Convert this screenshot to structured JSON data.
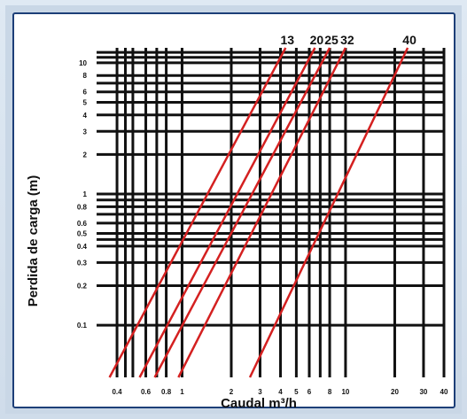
{
  "chart_data": {
    "type": "line",
    "x_scale": "log",
    "y_scale": "log",
    "xlabel": "Caudal m³/h",
    "ylabel": "Perdida de carga (m)",
    "xlim": [
      0.3,
      40
    ],
    "ylim": [
      0.04,
      13
    ],
    "x_ticks": [
      0.4,
      0.6,
      0.8,
      1,
      2,
      3,
      4,
      5,
      6,
      8,
      10,
      20,
      30,
      40
    ],
    "x_tick_labels": [
      "0.4",
      "0.6",
      "0.8",
      "1",
      "2",
      "3",
      "4",
      "5",
      "6",
      "8",
      "10",
      "20",
      "30",
      "40"
    ],
    "y_ticks": [
      0.1,
      0.2,
      0.3,
      0.4,
      0.5,
      0.6,
      0.8,
      1,
      2,
      3,
      4,
      5,
      6,
      8,
      10
    ],
    "y_tick_labels": [
      "0.1",
      "0.2",
      "0.3",
      "0.4",
      "0.5",
      "0.6",
      "0.8",
      "1",
      "2",
      "3",
      "4",
      "5",
      "6",
      "8",
      "10"
    ],
    "x_grid": [
      0.4,
      0.45,
      0.5,
      0.6,
      0.7,
      0.8,
      1,
      2,
      3,
      4,
      5,
      6,
      7,
      8,
      10,
      20,
      30,
      40
    ],
    "y_grid": [
      0.1,
      0.2,
      0.3,
      0.4,
      0.45,
      0.5,
      0.6,
      0.7,
      0.8,
      0.9,
      1,
      2,
      3,
      4,
      5,
      6,
      7,
      8,
      10,
      11,
      12
    ],
    "grid": true,
    "series": [
      {
        "name": "13",
        "x": [
          0.36,
          4.3
        ],
        "y": [
          0.04,
          13
        ],
        "color": "#d42020"
      },
      {
        "name": "20",
        "x": [
          0.55,
          6.5
        ],
        "y": [
          0.04,
          13
        ],
        "color": "#d42020"
      },
      {
        "name": "25",
        "x": [
          0.68,
          8.0
        ],
        "y": [
          0.04,
          13
        ],
        "color": "#d42020"
      },
      {
        "name": "32",
        "x": [
          0.95,
          10.0
        ],
        "y": [
          0.04,
          13
        ],
        "color": "#d42020"
      },
      {
        "name": "40",
        "x": [
          2.6,
          24.0
        ],
        "y": [
          0.04,
          13
        ],
        "color": "#d42020"
      }
    ]
  }
}
